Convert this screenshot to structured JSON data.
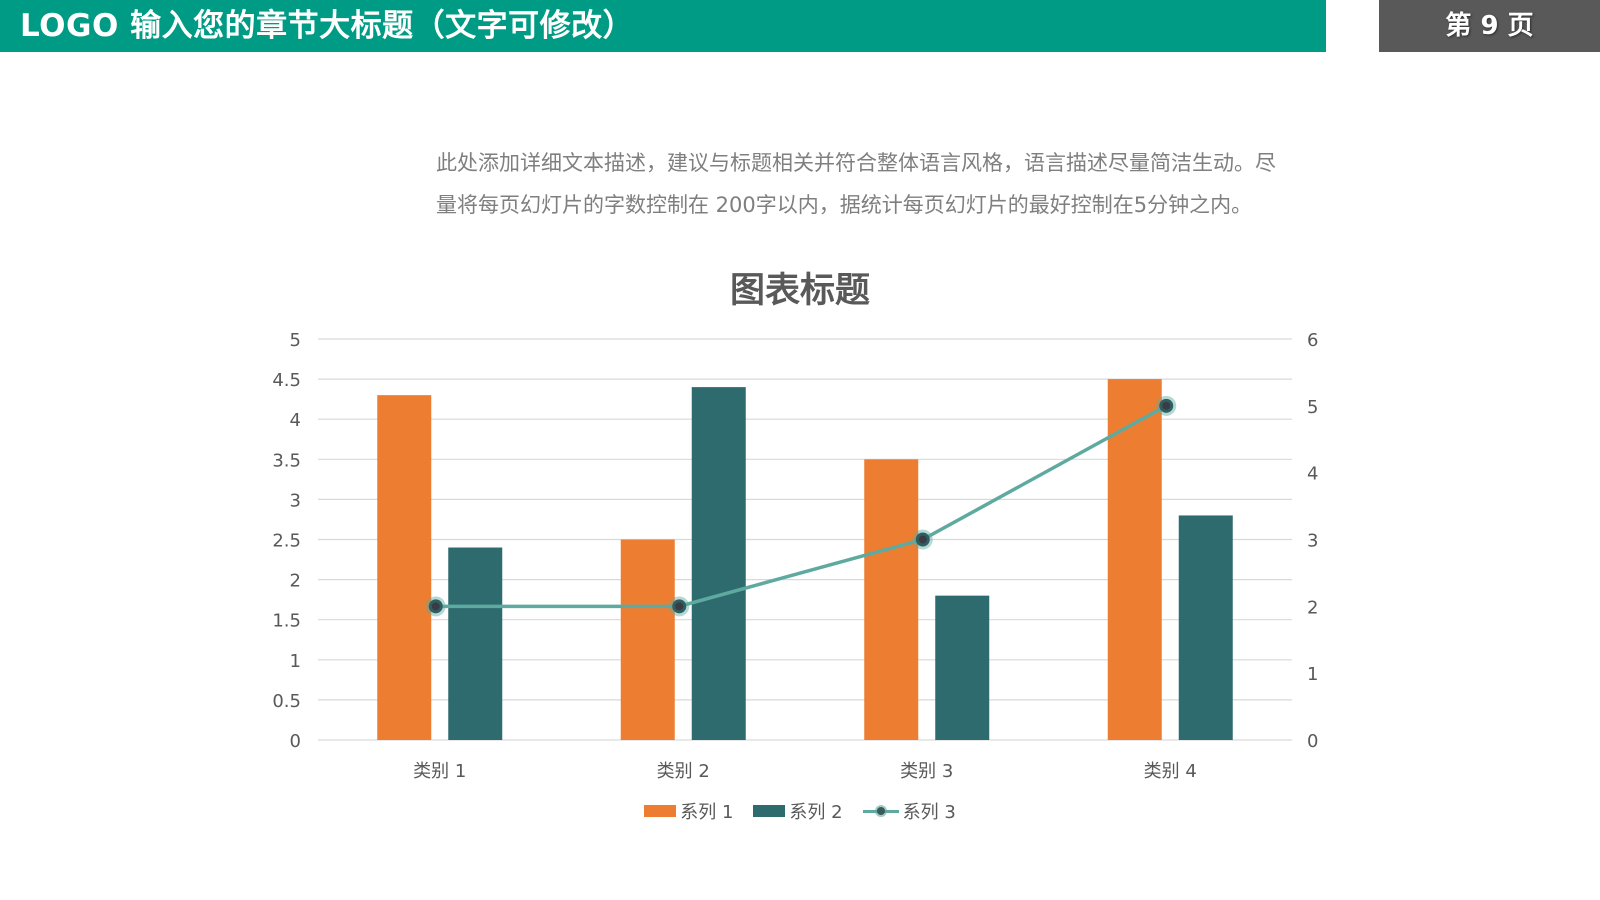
{
  "header": {
    "title": "LOGO  输入您的章节大标题（文字可修改）",
    "page_label": "第 9 页"
  },
  "description": {
    "line1": "此处添加详细文本描述，建议与标题相关并符合整体语言风格，语言描述尽量简洁生动。尽",
    "line2": "量将每页幻灯片的字数控制在  200字以内，据统计每页幻灯片的最好控制在5分钟之内。"
  },
  "colors": {
    "accent": "#009B84",
    "page_box": "#595959",
    "series1": "#ED7D31",
    "series2": "#2E6B6E",
    "series3": "#5FAAA0"
  },
  "chart_data": {
    "type": "bar",
    "title": "图表标题",
    "categories": [
      "类别 1",
      "类别 2",
      "类别 3",
      "类别 4"
    ],
    "series": [
      {
        "name": "系列 1",
        "type": "bar",
        "axis": "left",
        "values": [
          4.3,
          2.5,
          3.5,
          4.5
        ]
      },
      {
        "name": "系列 2",
        "type": "bar",
        "axis": "left",
        "values": [
          2.4,
          4.4,
          1.8,
          2.8
        ]
      },
      {
        "name": "系列 3",
        "type": "line",
        "axis": "right",
        "values": [
          2,
          2,
          3,
          5
        ]
      }
    ],
    "left_axis": {
      "range": [
        0,
        5
      ],
      "ticks": [
        "0",
        "0.5",
        "1",
        "1.5",
        "2",
        "2.5",
        "3",
        "3.5",
        "4",
        "4.5",
        "5"
      ]
    },
    "right_axis": {
      "range": [
        0,
        6
      ],
      "ticks": [
        "0",
        "1",
        "2",
        "3",
        "4",
        "5",
        "6"
      ]
    },
    "xlabel": "",
    "ylabel": "",
    "grid": true,
    "legend_position": "bottom"
  }
}
